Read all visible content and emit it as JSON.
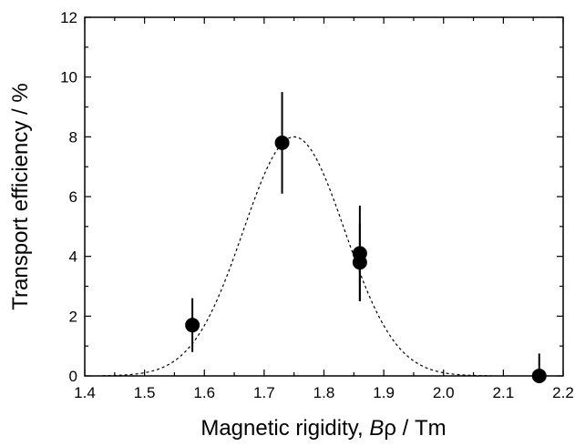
{
  "chart_data": {
    "type": "scatter",
    "xlabel": "Magnetic rigidity, Bρ  / Tm",
    "xlabel_parts": [
      "Magnetic rigidity, ",
      "B",
      "ρ",
      "  / Tm"
    ],
    "ylabel": "Transport efficiency / %",
    "xlim": [
      1.4,
      2.2
    ],
    "ylim": [
      0,
      12
    ],
    "x_ticks": [
      "1.4",
      "1.5",
      "1.6",
      "1.7",
      "1.8",
      "1.9",
      "2.0",
      "2.1",
      "2.2"
    ],
    "y_ticks": [
      "0",
      "2",
      "4",
      "6",
      "8",
      "10",
      "12"
    ],
    "grid": false,
    "points": [
      {
        "x": 1.58,
        "y": 1.7,
        "err_low": 0.9,
        "err_high": 0.9
      },
      {
        "x": 1.73,
        "y": 7.8,
        "err_low": 1.7,
        "err_high": 1.7
      },
      {
        "x": 1.86,
        "y": 4.1,
        "err_low": 1.6,
        "err_high": 1.6
      },
      {
        "x": 1.86,
        "y": 3.8,
        "err_low": 1.3,
        "err_high": 1.3
      },
      {
        "x": 2.16,
        "y": 0.0,
        "err_low": 0.0,
        "err_high": 0.75
      }
    ],
    "fit_curve": {
      "style": "dashed",
      "function": "gaussian",
      "amplitude": 8.0,
      "center": 1.75,
      "sigma": 0.085
    }
  }
}
